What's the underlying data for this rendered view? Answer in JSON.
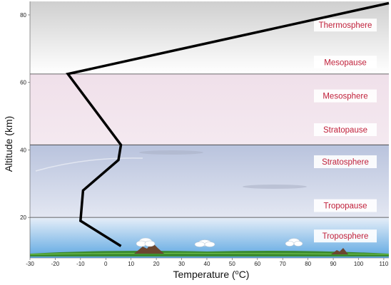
{
  "chart_data": {
    "type": "line",
    "xlabel_prefix": "Temperature (",
    "xlabel_unit_sup": "o",
    "xlabel_unit_suffix": "C)",
    "ylabel": "Altitude (km)",
    "xlim": [
      -30,
      112
    ],
    "ylim": [
      8,
      84
    ],
    "x_ticks": [
      -30,
      -20,
      -10,
      0,
      10,
      20,
      30,
      40,
      50,
      60,
      70,
      80,
      90,
      100,
      110
    ],
    "y_ticks": [
      20,
      40,
      60,
      80
    ],
    "grid": false,
    "series": [
      {
        "x": [
          6,
          -10,
          -9,
          5,
          6,
          -15,
          112
        ],
        "y": [
          11.5,
          19,
          28,
          37,
          41.5,
          62.5,
          83.5
        ],
        "color": "#000000"
      }
    ],
    "layers": [
      {
        "y0": 62.5,
        "y1": 84,
        "top_color": "#cfcfcf",
        "bottom_color": "#ffffff"
      },
      {
        "y0": 41.5,
        "y1": 62.5,
        "top_color": "#f0e0ea",
        "bottom_color": "#f4e9f0"
      },
      {
        "y0": 20,
        "y1": 41.5,
        "top_color": "#b9c3dd",
        "bottom_color": "#e3e7f2"
      },
      {
        "y0": 8,
        "y1": 20,
        "top_color": "#e6eef8",
        "bottom_color": "#5ea8e2"
      }
    ],
    "boundaries": [
      62.5,
      41.5,
      20
    ],
    "annotations": [
      {
        "text": "Thermosphere",
        "y": 77
      },
      {
        "text": "Mesopause",
        "y": 66
      },
      {
        "text": "Mesosphere",
        "y": 56
      },
      {
        "text": "Stratopause",
        "y": 46
      },
      {
        "text": "Stratosphere",
        "y": 36.5
      },
      {
        "text": "Tropopause",
        "y": 23.5
      },
      {
        "text": "Troposphere",
        "y": 14.5
      }
    ],
    "annotation_color": "#c0203a"
  }
}
